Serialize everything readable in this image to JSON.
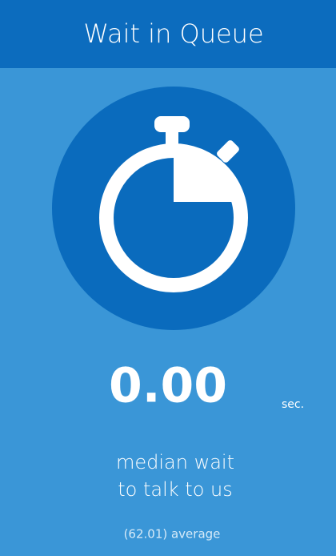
{
  "header": {
    "title": "Wait in Queue"
  },
  "stat": {
    "value": "0.00",
    "unit": "sec."
  },
  "caption": {
    "lines": [
      "median wait",
      "to talk to us"
    ]
  },
  "footnote": "(62.01) average"
}
